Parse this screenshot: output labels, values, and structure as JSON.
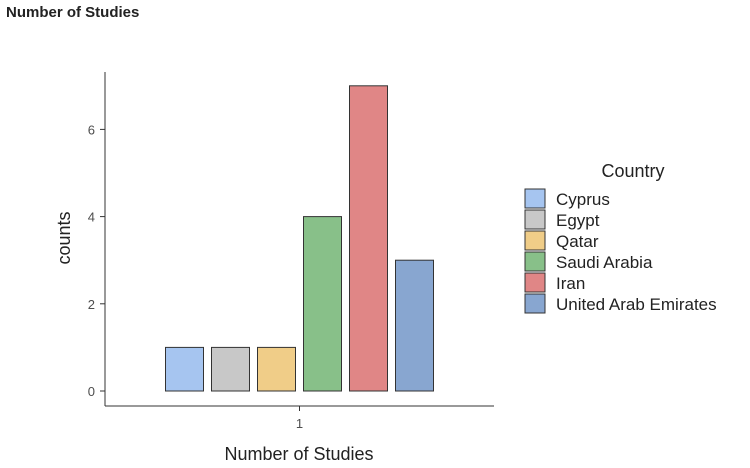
{
  "header": {
    "title": "Number of Studies"
  },
  "chart_data": {
    "type": "bar",
    "title": "",
    "xlabel": "Number of Studies",
    "ylabel": "counts",
    "categories": [
      "1"
    ],
    "ylim": [
      0,
      7
    ],
    "yticks": [
      0,
      2,
      4,
      6
    ],
    "grid": false,
    "legend": {
      "title": "Country",
      "position": "right"
    },
    "series": [
      {
        "name": "Cyprus",
        "values": [
          1
        ],
        "color": "#a6c5f0"
      },
      {
        "name": "Egypt",
        "values": [
          1
        ],
        "color": "#c8c8c8"
      },
      {
        "name": "Qatar",
        "values": [
          1
        ],
        "color": "#f0cd88"
      },
      {
        "name": "Saudi Arabia",
        "values": [
          4
        ],
        "color": "#88c089"
      },
      {
        "name": "Iran",
        "values": [
          7
        ],
        "color": "#e08686"
      },
      {
        "name": "United Arab Emirates",
        "values": [
          3
        ],
        "color": "#88a6d0"
      }
    ]
  }
}
